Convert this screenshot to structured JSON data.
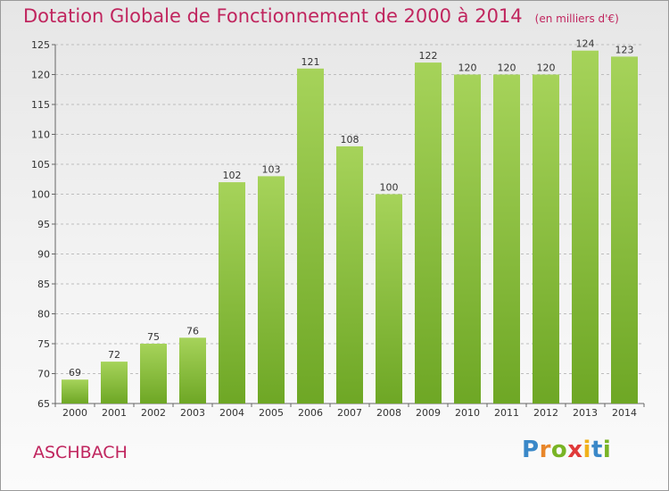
{
  "header": {
    "title": "Dotation Globale de Fonctionnement de 2000 à 2014",
    "unit": "(en milliers d'€)"
  },
  "footer": {
    "commune": "ASCHBACH",
    "logo": {
      "letters": [
        "P",
        "r",
        "o",
        "x",
        "i",
        "t",
        "i"
      ],
      "colors": [
        "#3a88c8",
        "#e8862a",
        "#79b425",
        "#e03a3a",
        "#f0b11c",
        "#3a88c8",
        "#79b425"
      ]
    }
  },
  "colors": {
    "bar_light": "#a6d35a",
    "bar_dark": "#6ea725",
    "grid": "#bdbdbd",
    "title": "#c0255e"
  },
  "chart_data": {
    "type": "bar",
    "title": "Dotation Globale de Fonctionnement de 2000 à 2014",
    "subtitle": "(en milliers d'€)",
    "categories": [
      "2000",
      "2001",
      "2002",
      "2003",
      "2004",
      "2005",
      "2006",
      "2007",
      "2008",
      "2009",
      "2010",
      "2011",
      "2012",
      "2013",
      "2014"
    ],
    "values": [
      69,
      72,
      75,
      76,
      102,
      103,
      121,
      108,
      100,
      122,
      120,
      120,
      120,
      124,
      123
    ],
    "ylim": [
      65,
      125
    ],
    "yticks": [
      65,
      70,
      75,
      80,
      85,
      90,
      95,
      100,
      105,
      110,
      115,
      120,
      125
    ],
    "grid": "horizontal dashed",
    "data_labels": true
  }
}
